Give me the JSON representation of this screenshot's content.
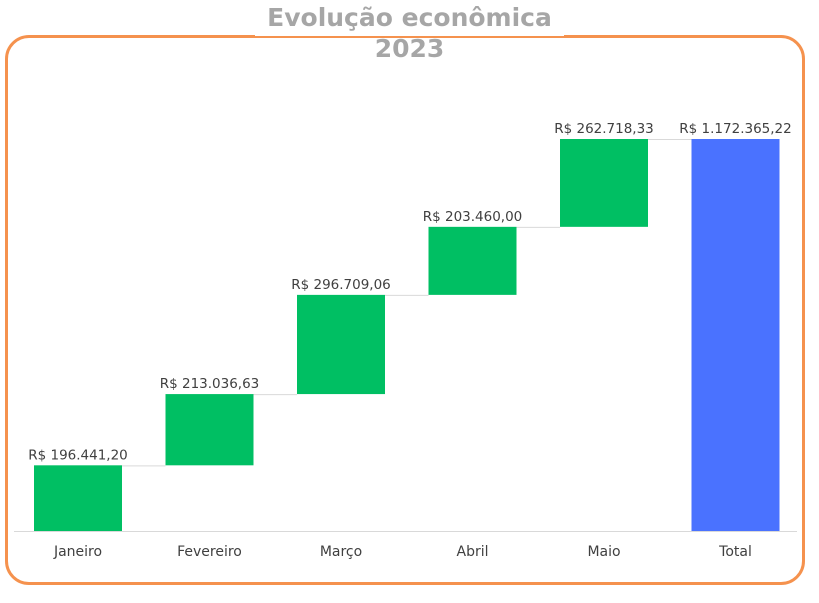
{
  "chart_data": {
    "type": "waterfall",
    "title": "Evolução econômica",
    "subtitle": "2023",
    "categories": [
      "Janeiro",
      "Fevereiro",
      "Março",
      "Abril",
      "Maio",
      "Total"
    ],
    "values": [
      196441.2,
      213036.63,
      296709.06,
      203460.0,
      262718.33,
      1172365.22
    ],
    "labels": [
      "R$ 196.441,20",
      "R$ 213.036,63",
      "R$ 296.709,06",
      "R$ 203.460,00",
      "R$ 262.718,33",
      "R$ 1.172.365,22"
    ],
    "is_total": [
      false,
      false,
      false,
      false,
      false,
      true
    ],
    "ylim": [
      0,
      1172365.22
    ],
    "grid": false,
    "legend": "none",
    "colors": {
      "increase": "#00bf63",
      "total": "#4a72ff",
      "connector": "#d9d9d9",
      "axis": "#d9d9d9",
      "frame": "#f5924e",
      "title": "#a6a6a6"
    }
  }
}
